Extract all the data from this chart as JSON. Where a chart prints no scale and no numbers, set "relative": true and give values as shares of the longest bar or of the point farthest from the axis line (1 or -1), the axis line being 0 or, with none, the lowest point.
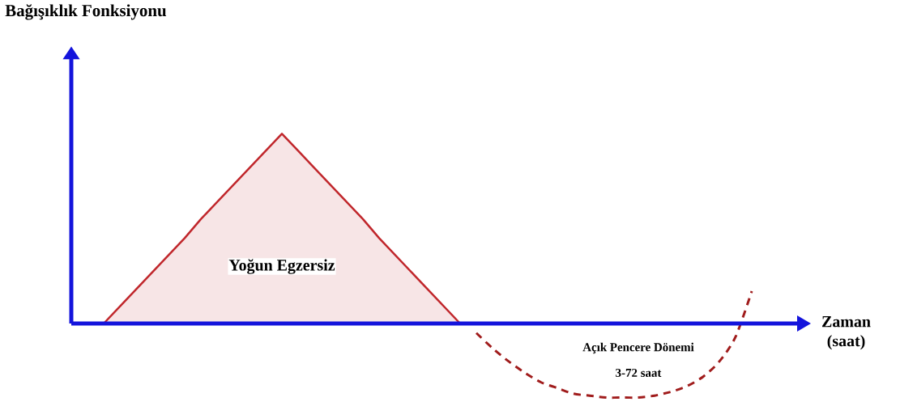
{
  "chart_data": {
    "type": "area",
    "relative": true,
    "xlabel": "Zaman (saat)",
    "categories": [
      null,
      null,
      null,
      null,
      null,
      null,
      null,
      null,
      null,
      null,
      null,
      null,
      null,
      null,
      null,
      null,
      null,
      null,
      null,
      null,
      null,
      null,
      null,
      null,
      null,
      null,
      null,
      null,
      null,
      null,
      null,
      null,
      null,
      null,
      null,
      null,
      null,
      null,
      null,
      null,
      null,
      null,
      null,
      null,
      null,
      null
    ],
    "series": [
      {
        "type": "area",
        "color": "#c0262b",
        "values": [
          null,
          null,
          0,
          0.09,
          0.18,
          0.27,
          0.36,
          0.45,
          0.55,
          0.64,
          0.73,
          0.82,
          0.91,
          1,
          0.91,
          0.82,
          0.73,
          0.64,
          0.55,
          0.45,
          0.36,
          0.27,
          0.18,
          0.09,
          0,
          null,
          null,
          null,
          null,
          null,
          null,
          null,
          null,
          null,
          null,
          null,
          null,
          null,
          null,
          null,
          null,
          null,
          null,
          null,
          null,
          null
        ]
      },
      {
        "type": "line",
        "line_style": "dashed",
        "color": "#a01c1c",
        "values": [
          null,
          null,
          null,
          null,
          null,
          null,
          null,
          null,
          null,
          null,
          null,
          null,
          null,
          null,
          null,
          null,
          null,
          null,
          null,
          null,
          null,
          null,
          null,
          null,
          null,
          -0.05,
          -0.13,
          -0.2,
          -0.26,
          -0.31,
          -0.34,
          -0.37,
          -0.38,
          -0.39,
          -0.39,
          -0.39,
          -0.38,
          -0.36,
          -0.33,
          -0.28,
          -0.2,
          -0.07,
          0.17,
          null,
          null,
          null
        ]
      }
    ],
    "ref_lines": [
      {
        "axis": "y",
        "value": 0,
        "color": "#1414dc"
      }
    ],
    "annotations": [
      "Bağışıklık Fonksiyonu",
      "Yoğun Egzersiz",
      "Açık Pencere Dönemi",
      "3-72 saat"
    ]
  }
}
